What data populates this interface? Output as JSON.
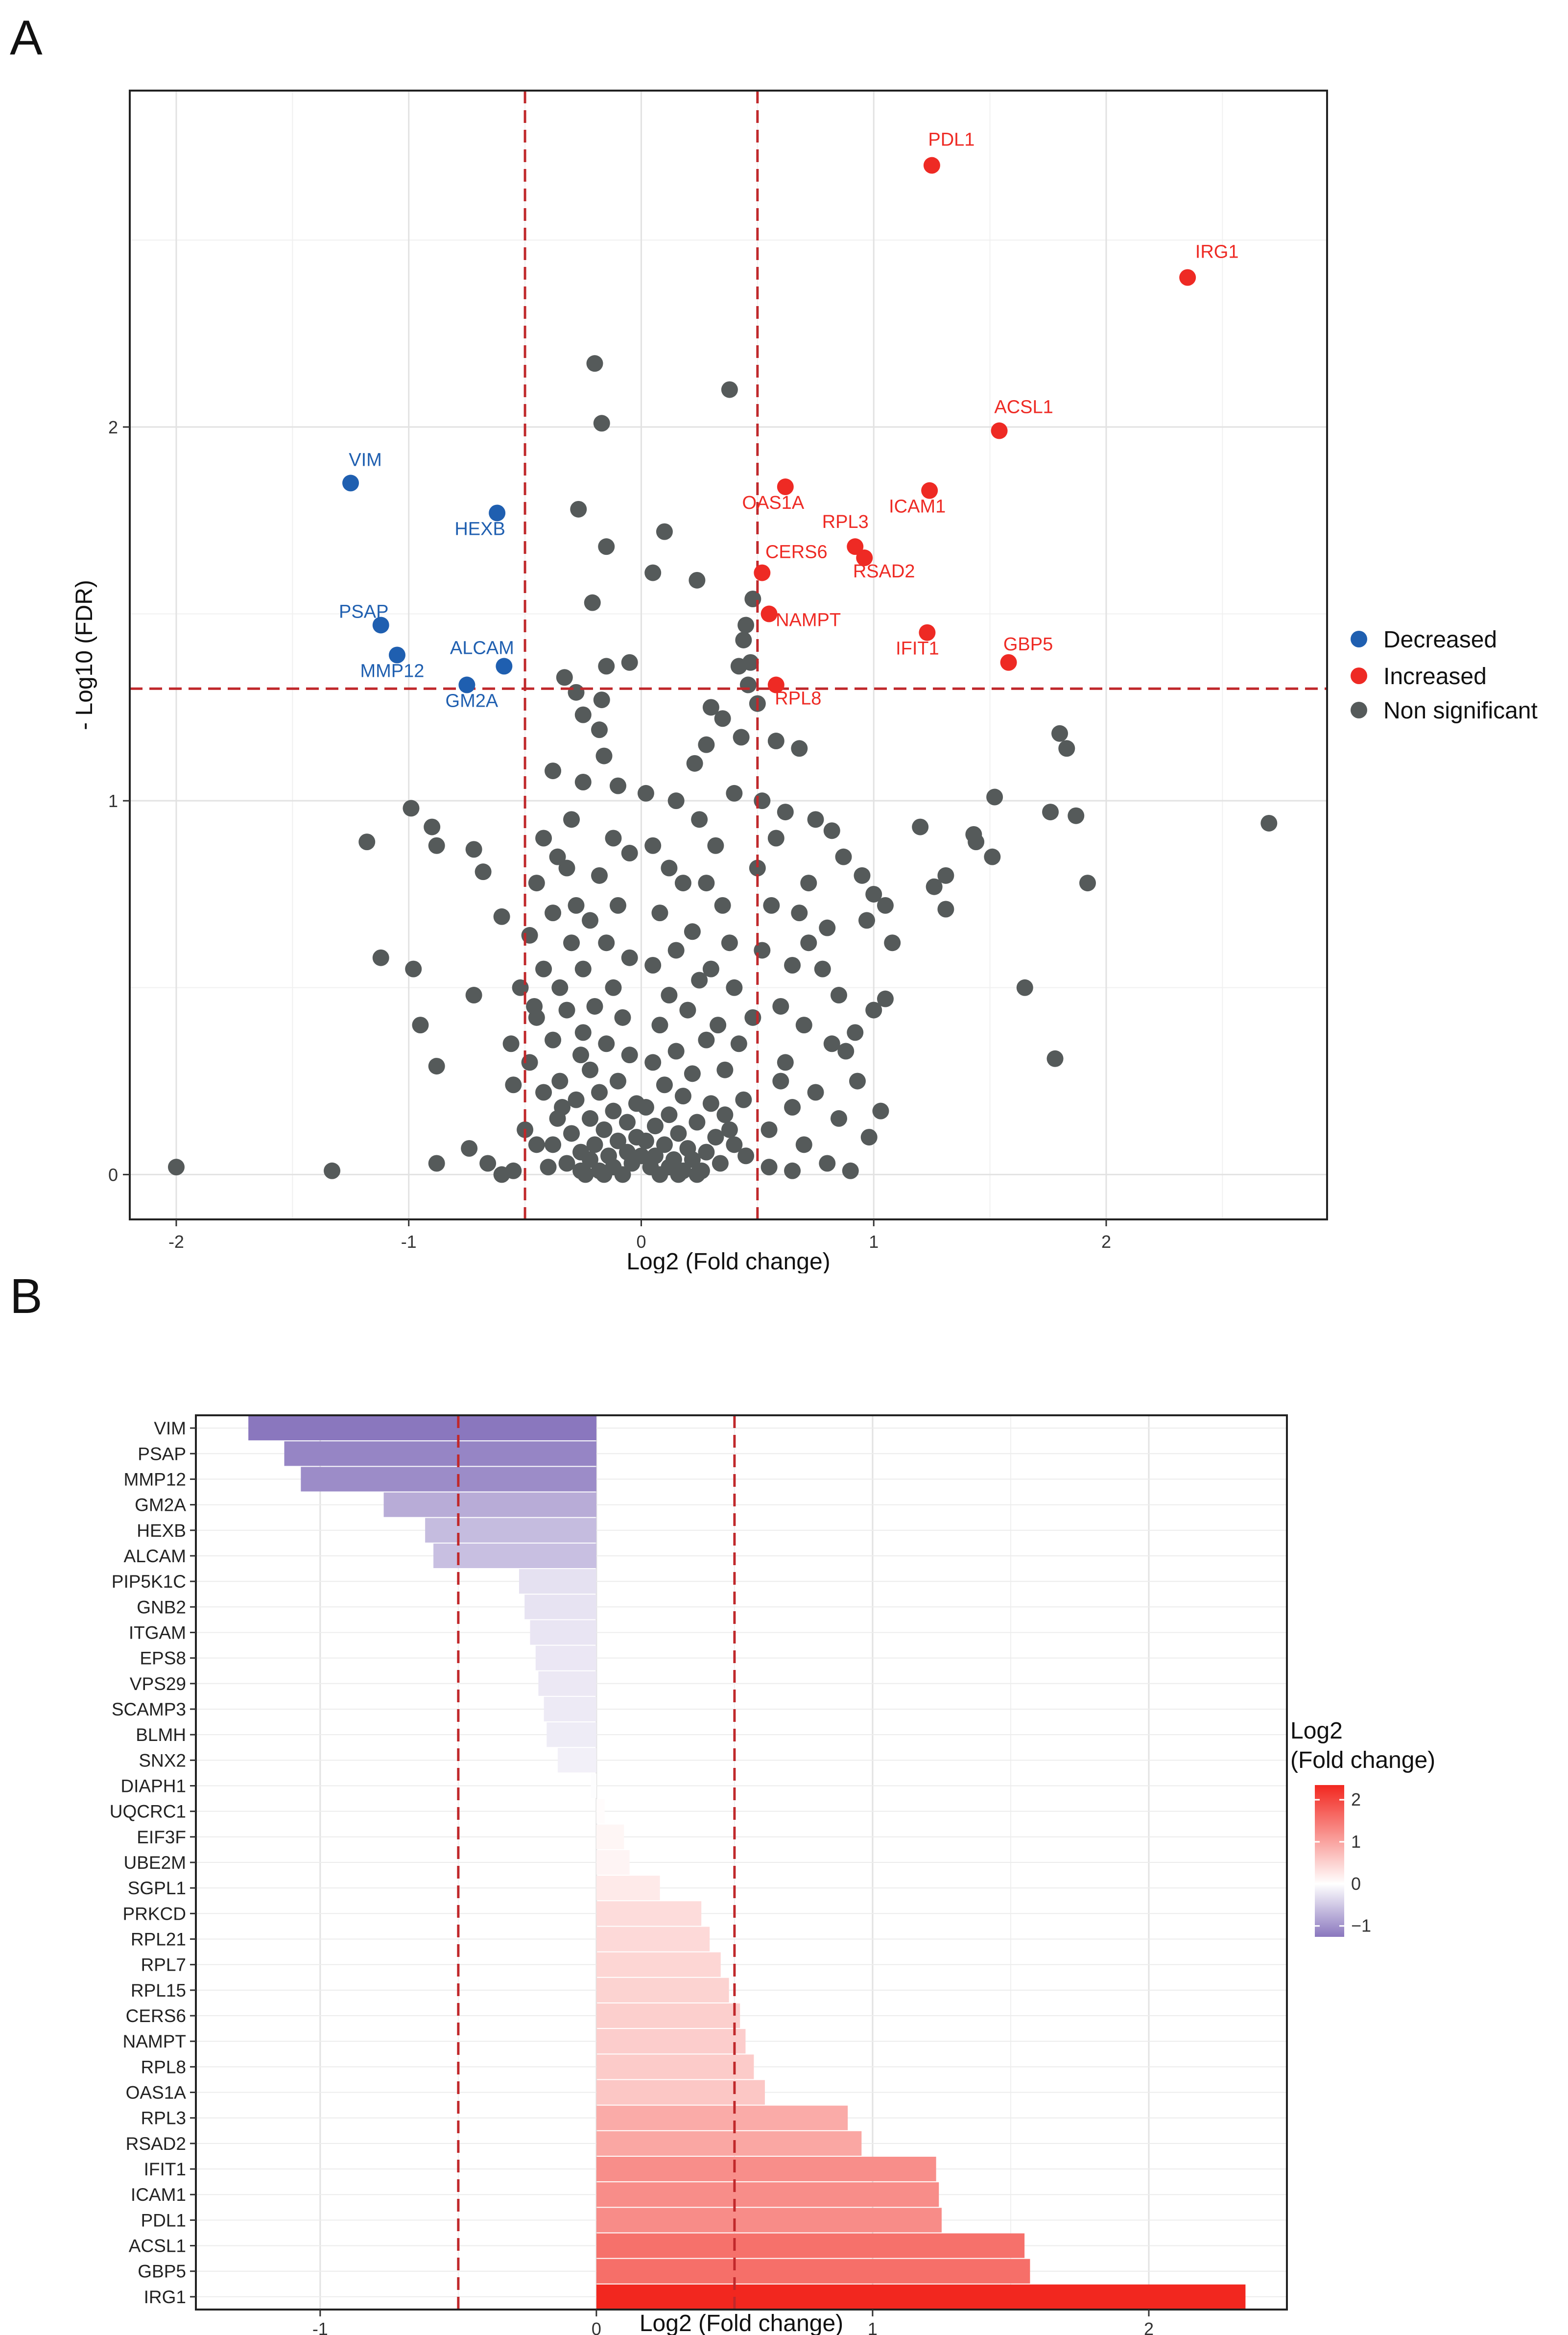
{
  "panels": {
    "a_letter": "A",
    "b_letter": "B"
  },
  "chart_data": [
    {
      "type": "scatter",
      "title": "",
      "xlabel": "Log2 (Fold change)",
      "ylabel": "- Log10 (FDR)",
      "xlim": [
        -2.2,
        2.95
      ],
      "ylim": [
        -0.12,
        2.9
      ],
      "xticks": [
        -2,
        -1,
        0,
        1,
        2
      ],
      "yticks": [
        0,
        1,
        2
      ],
      "thresholds": {
        "x": [
          -0.5,
          0.5
        ],
        "y": 1.3
      },
      "legend": {
        "position": "right",
        "entries": [
          {
            "name": "Decreased",
            "color": "#1f5fb0"
          },
          {
            "name": "Increased",
            "color": "#ee2a24"
          },
          {
            "name": "Non significant",
            "color": "#555a5a"
          }
        ]
      },
      "labeled_points": [
        {
          "gene": "PDL1",
          "x": 1.25,
          "y": 2.7,
          "group": "Increased"
        },
        {
          "gene": "IRG1",
          "x": 2.35,
          "y": 2.4,
          "group": "Increased"
        },
        {
          "gene": "ACSL1",
          "x": 1.54,
          "y": 1.99,
          "group": "Increased"
        },
        {
          "gene": "OAS1A",
          "x": 0.62,
          "y": 1.84,
          "group": "Increased"
        },
        {
          "gene": "ICAM1",
          "x": 1.24,
          "y": 1.83,
          "group": "Increased"
        },
        {
          "gene": "RPL3",
          "x": 0.92,
          "y": 1.68,
          "group": "Increased"
        },
        {
          "gene": "RSAD2",
          "x": 0.96,
          "y": 1.65,
          "group": "Increased"
        },
        {
          "gene": "CERS6",
          "x": 0.52,
          "y": 1.61,
          "group": "Increased"
        },
        {
          "gene": "NAMPT",
          "x": 0.55,
          "y": 1.5,
          "group": "Increased"
        },
        {
          "gene": "IFIT1",
          "x": 1.23,
          "y": 1.45,
          "group": "Increased"
        },
        {
          "gene": "GBP5",
          "x": 1.58,
          "y": 1.37,
          "group": "Increased"
        },
        {
          "gene": "RPL8",
          "x": 0.58,
          "y": 1.31,
          "group": "Increased"
        },
        {
          "gene": "VIM",
          "x": -1.25,
          "y": 1.85,
          "group": "Decreased"
        },
        {
          "gene": "HEXB",
          "x": -0.62,
          "y": 1.77,
          "group": "Decreased"
        },
        {
          "gene": "PSAP",
          "x": -1.12,
          "y": 1.47,
          "group": "Decreased"
        },
        {
          "gene": "MMP12",
          "x": -1.05,
          "y": 1.39,
          "group": "Decreased"
        },
        {
          "gene": "ALCAM",
          "x": -0.59,
          "y": 1.36,
          "group": "Decreased"
        },
        {
          "gene": "GM2A",
          "x": -0.75,
          "y": 1.31,
          "group": "Decreased"
        }
      ],
      "nonsig_points": [
        [
          -2.0,
          0.02
        ],
        [
          -1.33,
          0.01
        ],
        [
          -1.18,
          0.89
        ],
        [
          -1.12,
          0.58
        ],
        [
          -0.99,
          0.98
        ],
        [
          -0.98,
          0.55
        ],
        [
          -0.95,
          0.4
        ],
        [
          -0.9,
          0.93
        ],
        [
          -0.88,
          0.88
        ],
        [
          -0.88,
          0.29
        ],
        [
          -0.88,
          0.03
        ],
        [
          -0.72,
          0.87
        ],
        [
          -0.72,
          0.48
        ],
        [
          -0.68,
          0.81
        ],
        [
          -0.74,
          0.07
        ],
        [
          -0.66,
          0.03
        ],
        [
          -0.55,
          0.24
        ],
        [
          -0.6,
          0.69
        ],
        [
          -0.2,
          2.17
        ],
        [
          -0.17,
          2.01
        ],
        [
          -0.27,
          1.78
        ],
        [
          -0.15,
          1.68
        ],
        [
          0.1,
          1.72
        ],
        [
          0.05,
          1.61
        ],
        [
          0.24,
          1.59
        ],
        [
          0.38,
          2.1
        ],
        [
          0.48,
          1.54
        ],
        [
          -0.21,
          1.53
        ],
        [
          0.45,
          1.47
        ],
        [
          0.44,
          1.43
        ],
        [
          0.47,
          1.37
        ],
        [
          0.42,
          1.36
        ],
        [
          0.46,
          1.31
        ],
        [
          -0.05,
          1.37
        ],
        [
          -0.15,
          1.36
        ],
        [
          -0.33,
          1.33
        ],
        [
          -0.28,
          1.29
        ],
        [
          -0.17,
          1.27
        ],
        [
          -0.25,
          1.23
        ],
        [
          0.3,
          1.25
        ],
        [
          0.35,
          1.22
        ],
        [
          0.5,
          1.26
        ],
        [
          -0.18,
          1.19
        ],
        [
          0.28,
          1.15
        ],
        [
          -0.16,
          1.12
        ],
        [
          0.23,
          1.1
        ],
        [
          0.43,
          1.17
        ],
        [
          0.58,
          1.16
        ],
        [
          0.68,
          1.14
        ],
        [
          -0.38,
          1.08
        ],
        [
          -0.25,
          1.05
        ],
        [
          -0.1,
          1.04
        ],
        [
          0.02,
          1.02
        ],
        [
          0.15,
          1.0
        ],
        [
          0.4,
          1.02
        ],
        [
          0.52,
          1.0
        ],
        [
          0.62,
          0.97
        ],
        [
          0.75,
          0.95
        ],
        [
          0.82,
          0.92
        ],
        [
          0.87,
          0.85
        ],
        [
          0.95,
          0.8
        ],
        [
          1.0,
          0.75
        ],
        [
          1.05,
          0.72
        ],
        [
          0.97,
          0.68
        ],
        [
          1.08,
          0.62
        ],
        [
          1.05,
          0.47
        ],
        [
          1.0,
          0.44
        ],
        [
          0.92,
          0.38
        ],
        [
          0.88,
          0.33
        ],
        [
          0.93,
          0.25
        ],
        [
          1.03,
          0.17
        ],
        [
          0.98,
          0.1
        ],
        [
          1.2,
          0.93
        ],
        [
          1.26,
          0.77
        ],
        [
          1.31,
          0.8
        ],
        [
          1.31,
          0.71
        ],
        [
          1.43,
          0.91
        ],
        [
          1.44,
          0.89
        ],
        [
          1.52,
          1.01
        ],
        [
          1.51,
          0.85
        ],
        [
          1.65,
          0.5
        ],
        [
          1.76,
          0.97
        ],
        [
          1.78,
          0.31
        ],
        [
          1.8,
          1.18
        ],
        [
          1.83,
          1.14
        ],
        [
          1.87,
          0.96
        ],
        [
          1.92,
          0.78
        ],
        [
          2.7,
          0.94
        ],
        [
          0.72,
          0.78
        ],
        [
          0.68,
          0.7
        ],
        [
          0.8,
          0.66
        ],
        [
          0.72,
          0.62
        ],
        [
          0.65,
          0.56
        ],
        [
          0.78,
          0.55
        ],
        [
          0.85,
          0.48
        ],
        [
          0.6,
          0.45
        ],
        [
          0.7,
          0.4
        ],
        [
          0.82,
          0.35
        ],
        [
          0.62,
          0.3
        ],
        [
          0.75,
          0.22
        ],
        [
          0.65,
          0.18
        ],
        [
          0.85,
          0.15
        ],
        [
          0.7,
          0.08
        ],
        [
          0.8,
          0.03
        ],
        [
          0.9,
          0.01
        ],
        [
          0.65,
          0.01
        ],
        [
          0.55,
          0.02
        ],
        [
          -0.42,
          0.9
        ],
        [
          -0.36,
          0.85
        ],
        [
          -0.45,
          0.78
        ],
        [
          -0.38,
          0.7
        ],
        [
          -0.48,
          0.64
        ],
        [
          -0.42,
          0.55
        ],
        [
          -0.35,
          0.5
        ],
        [
          -0.45,
          0.42
        ],
        [
          -0.38,
          0.36
        ],
        [
          -0.48,
          0.3
        ],
        [
          -0.42,
          0.22
        ],
        [
          -0.36,
          0.15
        ],
        [
          -0.45,
          0.08
        ],
        [
          -0.4,
          0.02
        ],
        [
          -0.55,
          0.01
        ],
        [
          -0.6,
          0.0
        ],
        [
          -0.3,
          0.95
        ],
        [
          -0.32,
          0.82
        ],
        [
          -0.3,
          0.62
        ],
        [
          -0.28,
          0.72
        ],
        [
          -0.32,
          0.44
        ],
        [
          -0.26,
          0.32
        ],
        [
          0.25,
          0.95
        ],
        [
          0.32,
          0.88
        ],
        [
          0.28,
          0.78
        ],
        [
          0.35,
          0.72
        ],
        [
          0.38,
          0.62
        ],
        [
          0.3,
          0.55
        ],
        [
          0.4,
          0.5
        ],
        [
          0.33,
          0.4
        ],
        [
          0.42,
          0.35
        ],
        [
          0.36,
          0.28
        ],
        [
          0.44,
          0.2
        ],
        [
          0.38,
          0.12
        ],
        [
          0.45,
          0.05
        ],
        [
          -0.12,
          0.9
        ],
        [
          -0.05,
          0.86
        ],
        [
          0.05,
          0.88
        ],
        [
          0.12,
          0.82
        ],
        [
          -0.18,
          0.8
        ],
        [
          0.18,
          0.78
        ],
        [
          -0.1,
          0.72
        ],
        [
          0.08,
          0.7
        ],
        [
          -0.22,
          0.68
        ],
        [
          0.22,
          0.65
        ],
        [
          -0.15,
          0.62
        ],
        [
          0.15,
          0.6
        ],
        [
          -0.05,
          0.58
        ],
        [
          0.05,
          0.56
        ],
        [
          -0.25,
          0.55
        ],
        [
          0.25,
          0.52
        ],
        [
          -0.12,
          0.5
        ],
        [
          0.12,
          0.48
        ],
        [
          -0.2,
          0.45
        ],
        [
          0.2,
          0.44
        ],
        [
          -0.08,
          0.42
        ],
        [
          0.08,
          0.4
        ],
        [
          -0.25,
          0.38
        ],
        [
          0.28,
          0.36
        ],
        [
          -0.15,
          0.35
        ],
        [
          0.15,
          0.33
        ],
        [
          -0.05,
          0.32
        ],
        [
          0.05,
          0.3
        ],
        [
          -0.22,
          0.28
        ],
        [
          0.22,
          0.27
        ],
        [
          -0.1,
          0.25
        ],
        [
          0.1,
          0.24
        ],
        [
          -0.18,
          0.22
        ],
        [
          0.18,
          0.21
        ],
        [
          -0.28,
          0.2
        ],
        [
          0.3,
          0.19
        ],
        [
          -0.02,
          0.19
        ],
        [
          0.02,
          0.18
        ],
        [
          -0.12,
          0.17
        ],
        [
          0.12,
          0.16
        ],
        [
          -0.22,
          0.15
        ],
        [
          0.24,
          0.14
        ],
        [
          -0.06,
          0.14
        ],
        [
          0.06,
          0.13
        ],
        [
          -0.16,
          0.12
        ],
        [
          0.16,
          0.11
        ],
        [
          -0.3,
          0.11
        ],
        [
          0.32,
          0.1
        ],
        [
          -0.02,
          0.1
        ],
        [
          0.02,
          0.09
        ],
        [
          -0.1,
          0.09
        ],
        [
          0.1,
          0.08
        ],
        [
          -0.2,
          0.08
        ],
        [
          0.2,
          0.07
        ],
        [
          -0.26,
          0.06
        ],
        [
          0.28,
          0.06
        ],
        [
          -0.06,
          0.06
        ],
        [
          0.06,
          0.05
        ],
        [
          -0.14,
          0.05
        ],
        [
          0.14,
          0.04
        ],
        [
          -0.22,
          0.04
        ],
        [
          0.22,
          0.04
        ],
        [
          -0.32,
          0.03
        ],
        [
          0.34,
          0.03
        ],
        [
          -0.04,
          0.03
        ],
        [
          0.04,
          0.02
        ],
        [
          -0.12,
          0.02
        ],
        [
          0.12,
          0.02
        ],
        [
          -0.18,
          0.01
        ],
        [
          0.18,
          0.01
        ],
        [
          -0.26,
          0.01
        ],
        [
          0.26,
          0.01
        ],
        [
          -0.08,
          0.0
        ],
        [
          0.08,
          0.0
        ],
        [
          -0.16,
          0.0
        ],
        [
          0.16,
          0.0
        ],
        [
          -0.24,
          0.0
        ],
        [
          0.24,
          0.0
        ],
        [
          0.0,
          0.05
        ],
        [
          -0.34,
          0.18
        ],
        [
          0.36,
          0.16
        ],
        [
          -0.38,
          0.08
        ],
        [
          0.4,
          0.08
        ],
        [
          -0.35,
          0.25
        ],
        [
          -0.46,
          0.45
        ],
        [
          0.48,
          0.42
        ],
        [
          0.52,
          0.6
        ],
        [
          0.5,
          0.82
        ],
        [
          0.56,
          0.72
        ],
        [
          0.58,
          0.9
        ],
        [
          -0.52,
          0.5
        ],
        [
          -0.56,
          0.35
        ],
        [
          0.6,
          0.25
        ],
        [
          0.55,
          0.12
        ],
        [
          -0.5,
          0.12
        ]
      ]
    },
    {
      "type": "bar",
      "orientation": "horizontal",
      "title": "",
      "xlabel": "Log2 (Fold change)",
      "ylabel": "",
      "xlim": [
        -1.45,
        2.5
      ],
      "xticks": [
        -1,
        0,
        1,
        2
      ],
      "thresholds": {
        "x": [
          -0.5,
          0.5
        ]
      },
      "categories": [
        "VIM",
        "PSAP",
        "MMP12",
        "GM2A",
        "HEXB",
        "ALCAM",
        "PIP5K1C",
        "GNB2",
        "ITGAM",
        "EPS8",
        "VPS29",
        "SCAMP3",
        "BLMH",
        "SNX2",
        "DIAPH1",
        "UQCRC1",
        "EIF3F",
        "UBE2M",
        "SGPL1",
        "PRKCD",
        "RPL21",
        "RPL7",
        "RPL15",
        "CERS6",
        "NAMPT",
        "RPL8",
        "OAS1A",
        "RPL3",
        "RSAD2",
        "IFIT1",
        "ICAM1",
        "PDL1",
        "ACSL1",
        "GBP5",
        "IRG1"
      ],
      "values": [
        -1.26,
        -1.13,
        -1.07,
        -0.77,
        -0.62,
        -0.59,
        -0.28,
        -0.26,
        -0.24,
        -0.22,
        -0.21,
        -0.19,
        -0.18,
        -0.14,
        -0.02,
        0.03,
        0.1,
        0.12,
        0.23,
        0.38,
        0.41,
        0.45,
        0.48,
        0.52,
        0.54,
        0.57,
        0.61,
        0.91,
        0.96,
        1.23,
        1.24,
        1.25,
        1.55,
        1.57,
        2.35
      ],
      "legend": {
        "position": "right",
        "title_line1": "Log2",
        "title_line2": "(Fold change)",
        "ticks": [
          "2",
          "1",
          "0",
          "−1"
        ],
        "tick_values": [
          2,
          1,
          0,
          -1
        ],
        "range": [
          -1.26,
          2.35
        ],
        "colors": {
          "low": "#8a77be",
          "mid": "#ffffff",
          "high": "#f2271f"
        }
      }
    }
  ]
}
